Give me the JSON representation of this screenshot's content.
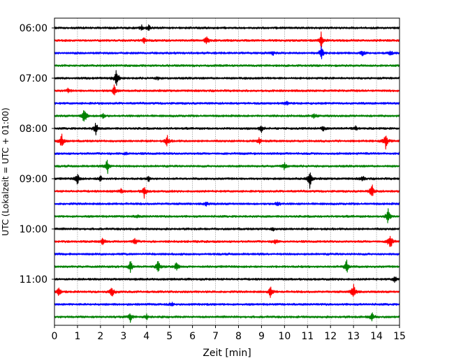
{
  "chart_data": {
    "type": "line",
    "title": "",
    "xlabel": "Zeit  [min]",
    "ylabel": "UTC (Lokalzeit = UTC + 01:00)",
    "xlim": [
      0,
      15
    ],
    "x_ticks": [
      "0",
      "1",
      "2",
      "3",
      "4",
      "5",
      "6",
      "7",
      "8",
      "9",
      "10",
      "11",
      "12",
      "13",
      "14",
      "15"
    ],
    "y_ticks": [
      "06:00",
      "07:00",
      "08:00",
      "09:00",
      "10:00",
      "11:00"
    ],
    "grid": "vertical dotted lines at each minute",
    "legend": "none",
    "colors": [
      "#000000",
      "#ff0000",
      "#0000ff",
      "#008000"
    ],
    "traces": [
      {
        "start": "06:00",
        "color": "#000000",
        "events": [
          {
            "x": 3.8,
            "amp": 0.25
          },
          {
            "x": 4.1,
            "amp": 0.3
          }
        ]
      },
      {
        "start": "06:15",
        "color": "#ff0000",
        "events": [
          {
            "x": 3.9,
            "amp": 0.3
          },
          {
            "x": 6.6,
            "amp": 0.55
          },
          {
            "x": 11.6,
            "amp": 0.9
          }
        ]
      },
      {
        "start": "06:30",
        "color": "#0000ff",
        "events": [
          {
            "x": 9.5,
            "amp": 0.2
          },
          {
            "x": 11.6,
            "amp": 0.65
          },
          {
            "x": 13.4,
            "amp": 0.25
          },
          {
            "x": 14.6,
            "amp": 0.25
          }
        ]
      },
      {
        "start": "06:45",
        "color": "#008000",
        "events": []
      },
      {
        "start": "07:00",
        "color": "#000000",
        "events": [
          {
            "x": 2.7,
            "amp": 0.9
          },
          {
            "x": 4.5,
            "amp": 0.15
          }
        ]
      },
      {
        "start": "07:15",
        "color": "#ff0000",
        "events": [
          {
            "x": 2.6,
            "amp": 0.5
          },
          {
            "x": 0.6,
            "amp": 0.2
          }
        ]
      },
      {
        "start": "07:30",
        "color": "#0000ff",
        "events": [
          {
            "x": 10.1,
            "amp": 0.2
          }
        ]
      },
      {
        "start": "07:45",
        "color": "#008000",
        "events": [
          {
            "x": 1.3,
            "amp": 0.9
          },
          {
            "x": 2.1,
            "amp": 0.25
          },
          {
            "x": 11.3,
            "amp": 0.25
          }
        ]
      },
      {
        "start": "08:00",
        "color": "#000000",
        "events": [
          {
            "x": 1.8,
            "amp": 0.6
          },
          {
            "x": 9.0,
            "amp": 0.35
          },
          {
            "x": 11.7,
            "amp": 0.25
          },
          {
            "x": 13.1,
            "amp": 0.2
          }
        ]
      },
      {
        "start": "08:15",
        "color": "#ff0000",
        "events": [
          {
            "x": 0.3,
            "amp": 0.85
          },
          {
            "x": 4.9,
            "amp": 0.5
          },
          {
            "x": 8.9,
            "amp": 0.3
          },
          {
            "x": 14.4,
            "amp": 0.7
          }
        ]
      },
      {
        "start": "08:30",
        "color": "#0000ff",
        "events": [
          {
            "x": 3.1,
            "amp": 0.15
          }
        ]
      },
      {
        "start": "08:45",
        "color": "#008000",
        "events": [
          {
            "x": 2.3,
            "amp": 0.75
          },
          {
            "x": 10.0,
            "amp": 0.3
          }
        ]
      },
      {
        "start": "09:00",
        "color": "#000000",
        "events": [
          {
            "x": 1.0,
            "amp": 0.6
          },
          {
            "x": 2.0,
            "amp": 0.3
          },
          {
            "x": 4.1,
            "amp": 0.25
          },
          {
            "x": 11.1,
            "amp": 0.95
          },
          {
            "x": 13.4,
            "amp": 0.25
          }
        ]
      },
      {
        "start": "09:15",
        "color": "#ff0000",
        "events": [
          {
            "x": 3.9,
            "amp": 0.55
          },
          {
            "x": 13.8,
            "amp": 0.7
          },
          {
            "x": 2.9,
            "amp": 0.2
          }
        ]
      },
      {
        "start": "09:30",
        "color": "#0000ff",
        "events": [
          {
            "x": 6.6,
            "amp": 0.2
          },
          {
            "x": 9.7,
            "amp": 0.3
          }
        ]
      },
      {
        "start": "09:45",
        "color": "#008000",
        "events": [
          {
            "x": 14.5,
            "amp": 0.8
          },
          {
            "x": 3.6,
            "amp": 0.15
          }
        ]
      },
      {
        "start": "10:00",
        "color": "#000000",
        "events": [
          {
            "x": 9.5,
            "amp": 0.15
          }
        ]
      },
      {
        "start": "10:15",
        "color": "#ff0000",
        "events": [
          {
            "x": 2.1,
            "amp": 0.35
          },
          {
            "x": 3.5,
            "amp": 0.3
          },
          {
            "x": 14.6,
            "amp": 0.95
          },
          {
            "x": 9.6,
            "amp": 0.25
          }
        ]
      },
      {
        "start": "10:30",
        "color": "#0000ff",
        "events": []
      },
      {
        "start": "10:45",
        "color": "#008000",
        "events": [
          {
            "x": 3.3,
            "amp": 0.55
          },
          {
            "x": 4.5,
            "amp": 0.55
          },
          {
            "x": 5.3,
            "amp": 0.4
          },
          {
            "x": 12.7,
            "amp": 0.75
          }
        ]
      },
      {
        "start": "11:00",
        "color": "#000000",
        "events": [
          {
            "x": 14.8,
            "amp": 0.3
          }
        ]
      },
      {
        "start": "11:15",
        "color": "#ff0000",
        "events": [
          {
            "x": 0.2,
            "amp": 0.45
          },
          {
            "x": 2.5,
            "amp": 0.55
          },
          {
            "x": 9.4,
            "amp": 0.6
          },
          {
            "x": 13.0,
            "amp": 0.9
          }
        ]
      },
      {
        "start": "11:30",
        "color": "#0000ff",
        "events": [
          {
            "x": 5.1,
            "amp": 0.15
          }
        ]
      },
      {
        "start": "11:45",
        "color": "#008000",
        "events": [
          {
            "x": 3.3,
            "amp": 0.45
          },
          {
            "x": 13.8,
            "amp": 0.5
          },
          {
            "x": 4.0,
            "amp": 0.25
          }
        ]
      }
    ]
  }
}
